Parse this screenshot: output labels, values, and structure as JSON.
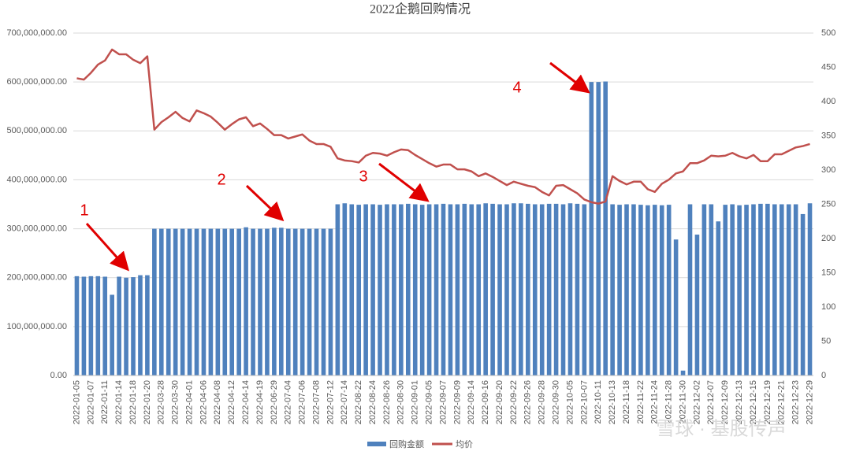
{
  "chart_data": {
    "type": "bar_line",
    "title": "2022企鹅回购情况",
    "categories": [
      "2022-01-05",
      null,
      "2022-01-07",
      null,
      "2022-01-11",
      null,
      "2022-01-14",
      null,
      "2022-01-18",
      null,
      "2022-01-20",
      null,
      "2022-03-28",
      null,
      "2022-03-30",
      null,
      "2022-04-01",
      null,
      "2022-04-06",
      null,
      "2022-04-08",
      null,
      "2022-04-12",
      null,
      "2022-04-14",
      null,
      "2022-04-19",
      null,
      "2022-06-29",
      null,
      "2022-07-04",
      null,
      "2022-07-06",
      null,
      "2022-07-08",
      null,
      "2022-07-12",
      null,
      "2022-07-14",
      null,
      "2022-08-22",
      null,
      "2022-08-24",
      null,
      "2022-08-26",
      null,
      "2022-08-30",
      null,
      "2022-09-01",
      null,
      "2022-09-05",
      null,
      "2022-09-07",
      null,
      "2022-09-09",
      null,
      "2022-09-14",
      null,
      "2022-09-16",
      null,
      "2022-09-20",
      null,
      "2022-09-22",
      null,
      "2022-09-26",
      null,
      "2022-09-28",
      null,
      "2022-09-30",
      null,
      "2022-10-05",
      null,
      "2022-10-07",
      null,
      "2022-10-11",
      null,
      "2022-10-13",
      null,
      "2022-11-18",
      null,
      "2022-11-22",
      null,
      "2022-11-24",
      null,
      "2022-11-28",
      null,
      "2022-11-30",
      null,
      "2022-12-02",
      null,
      "2022-12-07",
      null,
      "2022-12-09",
      null,
      "2022-12-13",
      null,
      "2022-12-15",
      null,
      "2022-12-19",
      null,
      "2022-12-21",
      null,
      "2022-12-23",
      null,
      "2022-12-29"
    ],
    "series": [
      {
        "name": "回购金额",
        "color": "#4f81bd",
        "values": [
          203000000,
          202000000,
          203000000,
          203000000,
          202000000,
          165000000,
          202000000,
          200000000,
          201000000,
          205000000,
          205000000,
          300000000,
          300000000,
          300000000,
          300000000,
          300000000,
          300000000,
          300000000,
          300000000,
          300000000,
          300000000,
          300000000,
          300000000,
          300000000,
          303000000,
          300000000,
          300000000,
          300000000,
          302000000,
          302000000,
          300000000,
          300000000,
          300000000,
          300000000,
          300000000,
          300000000,
          300000000,
          350000000,
          352000000,
          350000000,
          349000000,
          350000000,
          350000000,
          349000000,
          350000000,
          350000000,
          350000000,
          351000000,
          350000000,
          349000000,
          350000000,
          350000000,
          351000000,
          350000000,
          350000000,
          351000000,
          350000000,
          350000000,
          352000000,
          351000000,
          350000000,
          350000000,
          352000000,
          352000000,
          351000000,
          350000000,
          350000000,
          351000000,
          351000000,
          350000000,
          352000000,
          351000000,
          350000000,
          600000000,
          600000000,
          601000000,
          350000000,
          349000000,
          350000000,
          350000000,
          349000000,
          348000000,
          349000000,
          348000000,
          349000000,
          278000000,
          10000000,
          350000000,
          288000000,
          350000000,
          350000000,
          315000000,
          349000000,
          350000000,
          348000000,
          349000000,
          350000000,
          351000000,
          351000000,
          350000000,
          350000000,
          350000000,
          350000000,
          330000000,
          352000000
        ]
      },
      {
        "name": "均价",
        "color": "#c0504d",
        "axis": "y2",
        "values": [
          434,
          432,
          442,
          454,
          460,
          476,
          469,
          469,
          461,
          456,
          466,
          359,
          370,
          377,
          385,
          376,
          371,
          387,
          383,
          378,
          369,
          359,
          367,
          374,
          377,
          364,
          368,
          360,
          351,
          351,
          346,
          349,
          352,
          343,
          338,
          338,
          334,
          317,
          314,
          313,
          311,
          321,
          325,
          324,
          321,
          326,
          330,
          329,
          322,
          316,
          310,
          305,
          308,
          308,
          301,
          301,
          298,
          291,
          295,
          290,
          284,
          278,
          283,
          280,
          277,
          275,
          268,
          263,
          277,
          278,
          272,
          266,
          257,
          253,
          251,
          254,
          291,
          284,
          279,
          283,
          283,
          272,
          268,
          280,
          286,
          295,
          298,
          310,
          310,
          314,
          321,
          320,
          321,
          325,
          320,
          317,
          322,
          313,
          313,
          323,
          323,
          328,
          333,
          335,
          338
        ]
      }
    ],
    "ylim": [
      0,
      700000000
    ],
    "yticks": [
      {
        "value": 0,
        "label": "0.00"
      },
      {
        "value": 100000000,
        "label": "100,000,000.00"
      },
      {
        "value": 200000000,
        "label": "200,000,000.00"
      },
      {
        "value": 300000000,
        "label": "300,000,000.00"
      },
      {
        "value": 400000000,
        "label": "400,000,000.00"
      },
      {
        "value": 500000000,
        "label": "500,000,000.00"
      },
      {
        "value": 600000000,
        "label": "600,000,000.00"
      },
      {
        "value": 700000000,
        "label": "700,000,000.00"
      }
    ],
    "y2lim": [
      0,
      500
    ],
    "y2ticks": [
      0,
      50,
      100,
      150,
      200,
      250,
      300,
      350,
      400,
      450,
      500
    ],
    "grid": true,
    "legend": "bottom",
    "annotations": [
      "1",
      "2",
      "3",
      "4"
    ],
    "watermark": "雪球 · 基股传声"
  }
}
